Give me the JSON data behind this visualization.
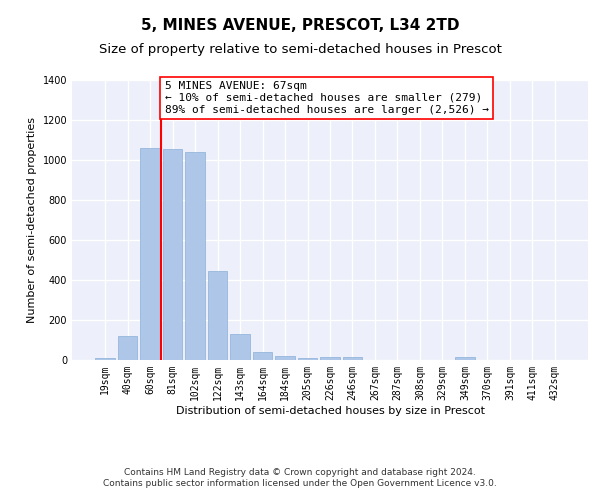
{
  "title": "5, MINES AVENUE, PRESCOT, L34 2TD",
  "subtitle": "Size of property relative to semi-detached houses in Prescot",
  "xlabel": "Distribution of semi-detached houses by size in Prescot",
  "ylabel": "Number of semi-detached properties",
  "categories": [
    "19sqm",
    "40sqm",
    "60sqm",
    "81sqm",
    "102sqm",
    "122sqm",
    "143sqm",
    "164sqm",
    "184sqm",
    "205sqm",
    "226sqm",
    "246sqm",
    "267sqm",
    "287sqm",
    "308sqm",
    "329sqm",
    "349sqm",
    "370sqm",
    "391sqm",
    "411sqm",
    "432sqm"
  ],
  "values": [
    10,
    120,
    1060,
    1055,
    1040,
    445,
    130,
    38,
    22,
    12,
    14,
    15,
    0,
    0,
    0,
    0,
    14,
    0,
    0,
    0,
    0
  ],
  "bar_color": "#aec6e8",
  "bar_edge_color": "#8ab0d8",
  "vline_x": 2.5,
  "vline_color": "red",
  "annotation_text": "5 MINES AVENUE: 67sqm\n← 10% of semi-detached houses are smaller (279)\n89% of semi-detached houses are larger (2,526) →",
  "annotation_box_color": "white",
  "annotation_box_edge": "red",
  "ylim": [
    0,
    1400
  ],
  "yticks": [
    0,
    200,
    400,
    600,
    800,
    1000,
    1200,
    1400
  ],
  "background_color": "#edf0fa",
  "grid_color": "#ffffff",
  "footer_line1": "Contains HM Land Registry data © Crown copyright and database right 2024.",
  "footer_line2": "Contains public sector information licensed under the Open Government Licence v3.0.",
  "title_fontsize": 11,
  "subtitle_fontsize": 9.5,
  "axis_label_fontsize": 8,
  "tick_fontsize": 7,
  "annotation_fontsize": 8,
  "footer_fontsize": 6.5
}
